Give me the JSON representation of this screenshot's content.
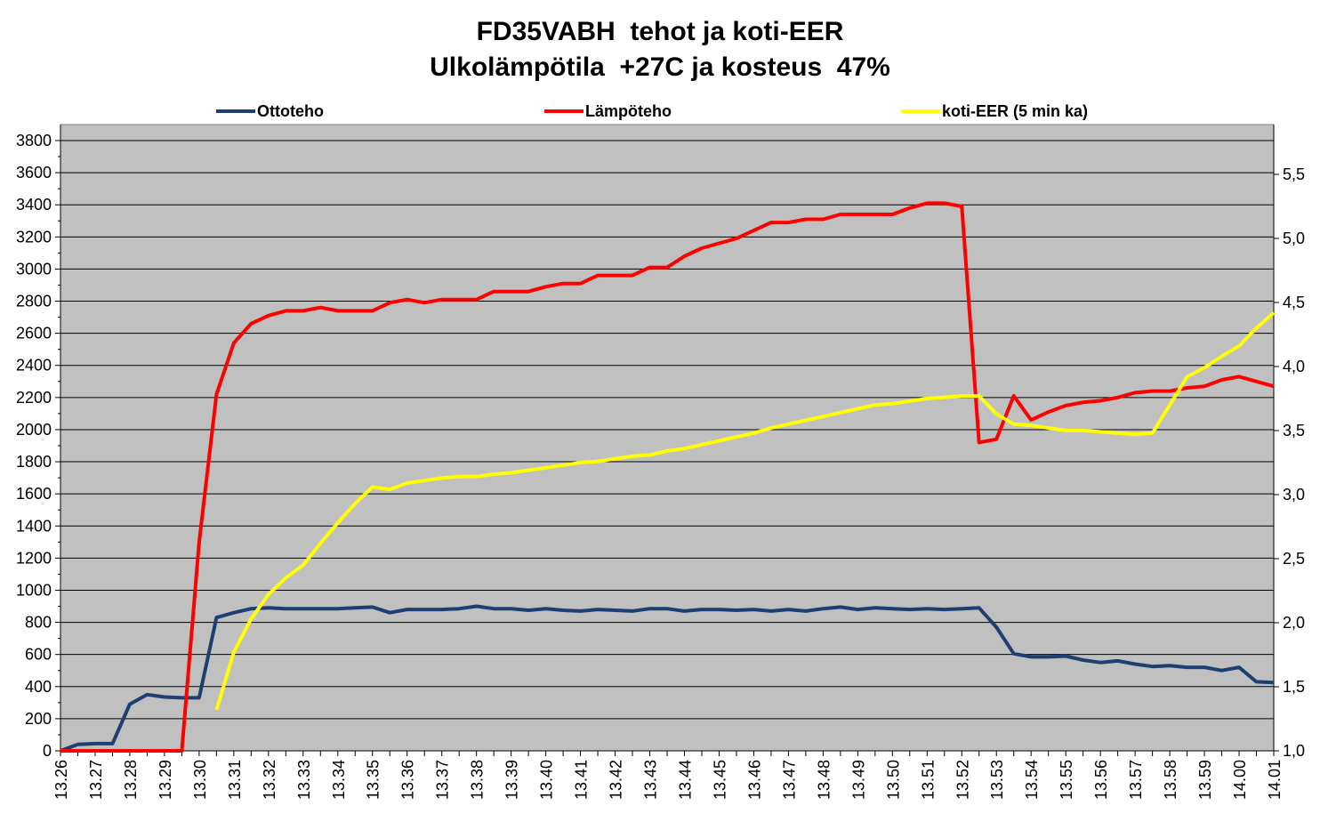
{
  "title": [
    "FD35VABH  tehot ja koti-EER",
    "Ulkolämpötila  +27C ja kosteus  47%"
  ],
  "chart_data": {
    "type": "line",
    "title": "FD35VABH  tehot ja koti-EER / Ulkolämpötila  +27C ja kosteus  47%",
    "legend_position": "top",
    "grid": true,
    "plot_background": "#c0c0c0",
    "x_tick_labels": [
      "13.26",
      "13.27",
      "13.28",
      "13.29",
      "13.30",
      "13.31",
      "13.32",
      "13.33",
      "13.34",
      "13.35",
      "13.36",
      "13.37",
      "13.38",
      "13.39",
      "13.40",
      "13.41",
      "13.42",
      "13.43",
      "13.44",
      "13.45",
      "13.46",
      "13.47",
      "13.48",
      "13.49",
      "13.50",
      "13.51",
      "13.52",
      "13.53",
      "13.54",
      "13.55",
      "13.56",
      "13.57",
      "13.58",
      "13.59",
      "14.00",
      "14.01"
    ],
    "x_points": 71,
    "y_left": {
      "min": 0,
      "max": 3800,
      "step": 200,
      "tick_labels": [
        "0",
        "200",
        "400",
        "600",
        "800",
        "1000",
        "1200",
        "1400",
        "1600",
        "1800",
        "2000",
        "2200",
        "2400",
        "2600",
        "2800",
        "3000",
        "3200",
        "3400",
        "3600",
        "3800"
      ]
    },
    "y_right": {
      "min": 1.0,
      "max": 5.5,
      "step": 0.5,
      "tick_labels": [
        "1,0",
        "1,5",
        "2,0",
        "2,5",
        "3,0",
        "3,5",
        "4,0",
        "4,5",
        "5,0",
        "5,5"
      ]
    },
    "series": [
      {
        "name": "Ottoteho",
        "color": "#1f3f73",
        "axis": "left",
        "values": [
          0,
          40,
          45,
          45,
          290,
          350,
          335,
          330,
          330,
          830,
          860,
          885,
          890,
          885,
          885,
          885,
          885,
          890,
          895,
          860,
          880,
          880,
          880,
          885,
          900,
          885,
          885,
          875,
          885,
          875,
          870,
          880,
          875,
          870,
          885,
          885,
          870,
          880,
          880,
          875,
          880,
          870,
          880,
          870,
          885,
          895,
          880,
          890,
          885,
          880,
          885,
          880,
          885,
          890,
          770,
          605,
          585,
          585,
          590,
          565,
          550,
          560,
          540,
          525,
          530,
          520,
          520,
          500,
          520,
          430,
          425
        ]
      },
      {
        "name": "Lämpöteho",
        "color": "#ff0000",
        "axis": "left",
        "values": [
          0,
          0,
          0,
          0,
          0,
          0,
          0,
          0,
          1300,
          2220,
          2540,
          2660,
          2710,
          2740,
          2740,
          2760,
          2740,
          2740,
          2740,
          2790,
          2810,
          2790,
          2810,
          2810,
          2810,
          2860,
          2860,
          2860,
          2890,
          2910,
          2910,
          2960,
          2960,
          2960,
          3010,
          3010,
          3080,
          3130,
          3160,
          3190,
          3240,
          3290,
          3290,
          3310,
          3310,
          3340,
          3340,
          3340,
          3340,
          3380,
          3410,
          3410,
          3390,
          1920,
          1940,
          2210,
          2060,
          2110,
          2150,
          2170,
          2180,
          2200,
          2230,
          2240,
          2240,
          2260,
          2270,
          2310,
          2330,
          2300,
          2270
        ]
      },
      {
        "name": "koti-EER (5 min ka)",
        "color": "#ffff00",
        "axis": "right",
        "values": [
          null,
          null,
          null,
          null,
          null,
          null,
          null,
          null,
          null,
          1.32,
          1.77,
          2.03,
          2.22,
          2.35,
          2.45,
          2.62,
          2.78,
          2.93,
          3.06,
          3.04,
          3.09,
          3.11,
          3.13,
          3.14,
          3.14,
          3.16,
          3.17,
          3.19,
          3.21,
          3.23,
          3.25,
          3.26,
          3.28,
          3.3,
          3.31,
          3.34,
          3.36,
          3.39,
          3.42,
          3.45,
          3.48,
          3.52,
          3.55,
          3.58,
          3.61,
          3.64,
          3.67,
          3.7,
          3.71,
          3.73,
          3.75,
          3.76,
          3.77,
          3.77,
          3.63,
          3.55,
          3.54,
          3.52,
          3.5,
          3.5,
          3.49,
          3.48,
          3.47,
          3.48,
          3.7,
          3.92,
          3.99,
          4.08,
          4.16,
          4.3,
          4.42
        ]
      }
    ]
  }
}
